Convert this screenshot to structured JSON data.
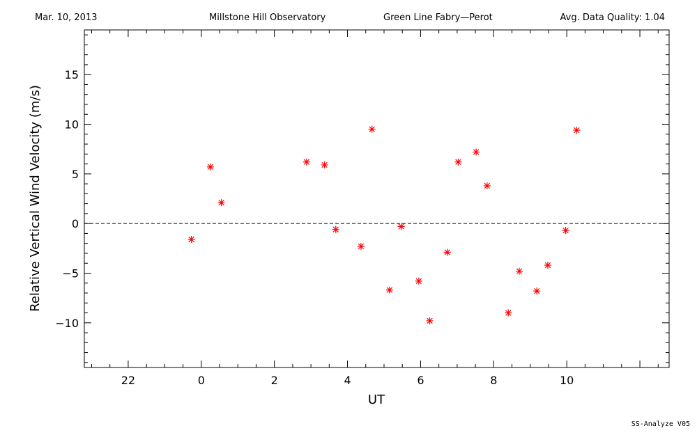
{
  "header": {
    "date": "Mar. 10, 2013",
    "observatory": "Millstone Hill Observatory",
    "instrument": "Green Line Fabry—Perot",
    "data_quality": "Avg. Data Quality: 1.04"
  },
  "footer": {
    "software": "SS-Analyze V05"
  },
  "colors": {
    "marker": "#ff0000",
    "axes": "#000000",
    "zero_line": "#000000"
  },
  "chart_data": {
    "type": "scatter",
    "xlabel": "UT",
    "ylabel": "Relative Vertical Wind Velocity (m/s)",
    "xlim": [
      -3.2,
      12.8
    ],
    "ylim": [
      -14.5,
      19.5
    ],
    "x_tick_values": [
      22,
      0,
      2,
      4,
      6,
      8,
      10
    ],
    "x_tick_labels": [
      "22",
      "0",
      "2",
      "4",
      "6",
      "8",
      "10"
    ],
    "y_tick_values": [
      15,
      10,
      5,
      0,
      -5,
      -10
    ],
    "y_tick_labels": [
      "15",
      "10",
      "5",
      "0",
      "−5",
      "−10"
    ],
    "zero_line": true,
    "marker": "asterisk",
    "series": [
      {
        "x": [
          -0.27,
          0.25,
          0.55,
          2.88,
          3.37,
          3.68,
          4.37,
          4.67,
          5.15,
          5.47,
          5.95,
          6.25,
          6.73,
          7.03,
          7.52,
          7.82,
          8.4,
          8.7,
          9.18,
          9.48,
          9.97,
          10.27
        ],
        "y": [
          -1.6,
          5.7,
          2.1,
          6.2,
          5.9,
          -0.6,
          -2.3,
          9.5,
          -6.7,
          -0.3,
          -5.8,
          -9.8,
          -2.9,
          6.2,
          7.2,
          3.8,
          -9.0,
          -4.8,
          -6.8,
          -4.2,
          -0.7,
          9.4
        ]
      }
    ]
  }
}
